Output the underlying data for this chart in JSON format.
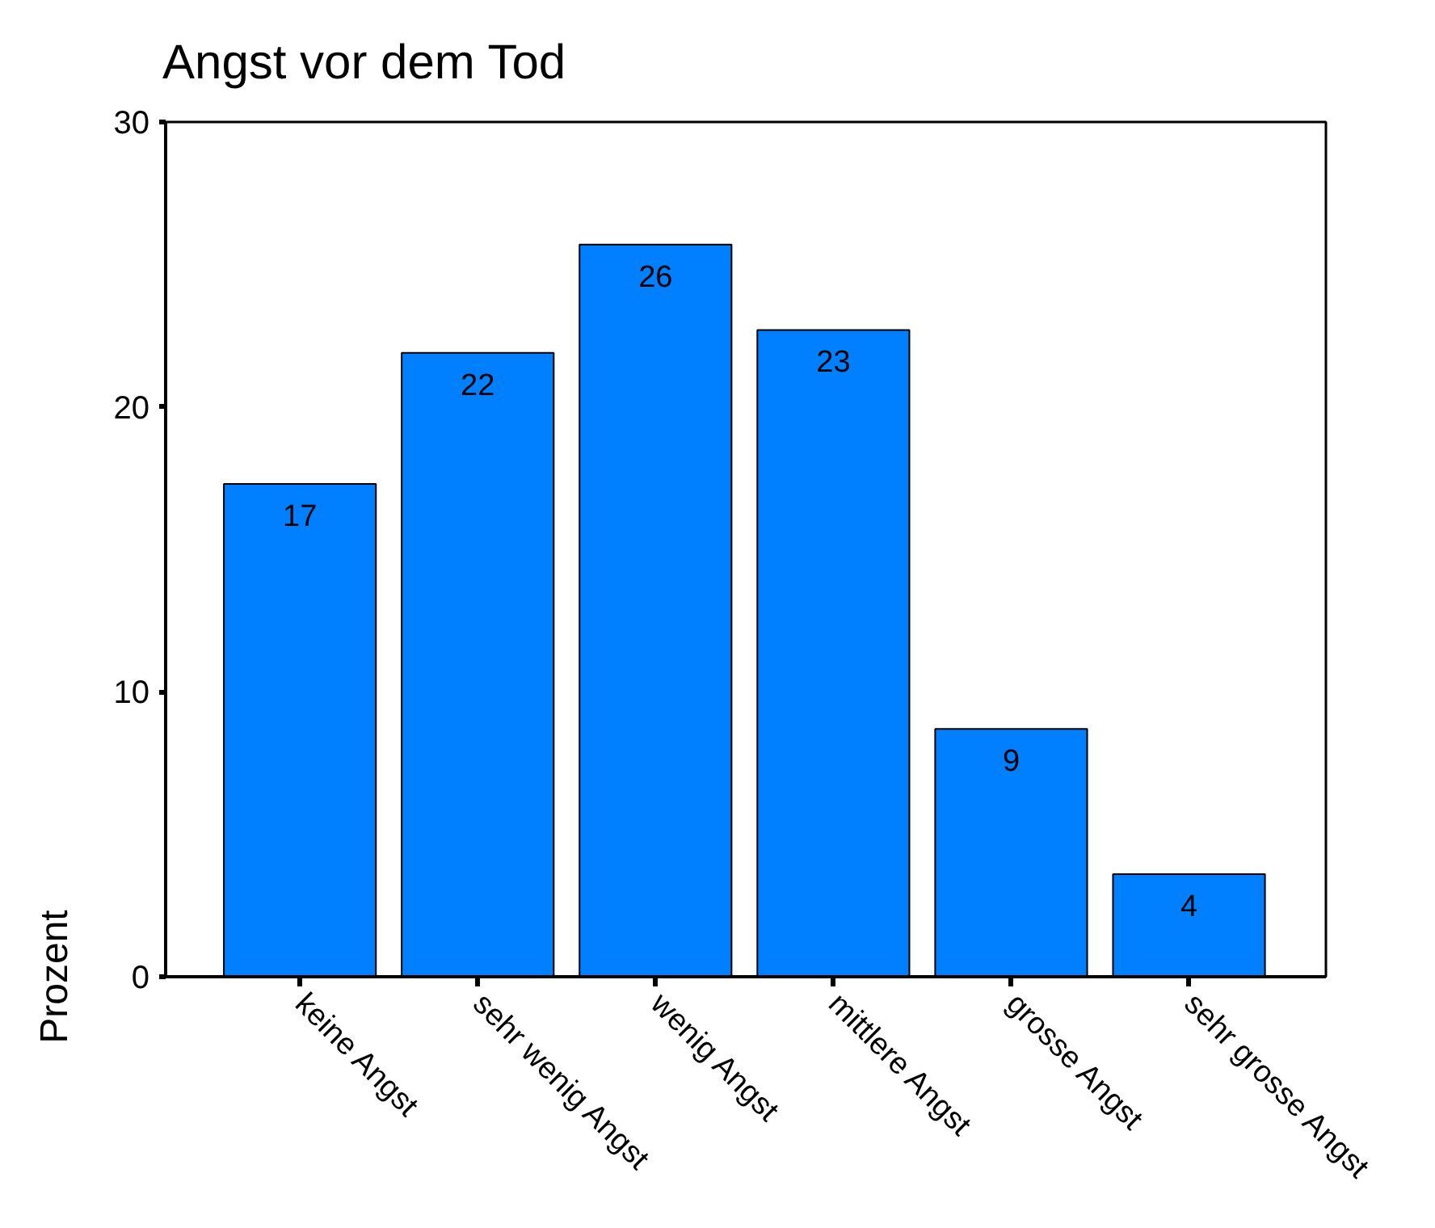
{
  "chart_data": {
    "type": "bar",
    "title": "Angst vor dem Tod",
    "ylabel": "Prozent",
    "categories": [
      "keine Angst",
      "sehr wenig Angst",
      "wenig Angst",
      "mittlere Angst",
      "grosse Angst",
      "sehr grosse Angst"
    ],
    "values": [
      17.3,
      21.9,
      25.7,
      22.7,
      8.7,
      3.6
    ],
    "value_labels": [
      "17",
      "22",
      "26",
      "23",
      "9",
      "4"
    ],
    "color": "#0080ff",
    "ylim": [
      0,
      30
    ],
    "yticks": [
      0,
      10,
      20,
      30
    ],
    "grid": false
  }
}
